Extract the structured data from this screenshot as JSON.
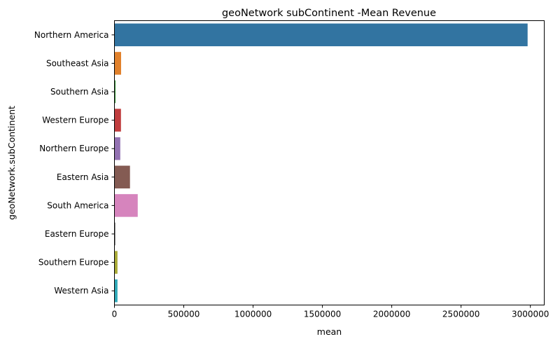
{
  "chart_data": {
    "type": "bar",
    "orientation": "horizontal",
    "title": "geoNetwork subContinent -Mean Revenue",
    "xlabel": "mean",
    "ylabel": "geoNetwork.subContinent",
    "xlim": [
      0,
      3100000
    ],
    "xticks": [
      0,
      500000,
      1000000,
      1500000,
      2000000,
      2500000,
      3000000
    ],
    "xtick_labels": [
      "0",
      "500000",
      "1000000",
      "1500000",
      "2000000",
      "2500000",
      "3000000"
    ],
    "grid": false,
    "categories": [
      "Northern America",
      "Southeast Asia",
      "Southern Asia",
      "Western Europe",
      "Northern Europe",
      "Eastern Asia",
      "South America",
      "Eastern Europe",
      "Southern Europe",
      "Western Asia"
    ],
    "values": [
      2980000,
      48000,
      8000,
      47000,
      42000,
      112000,
      168000,
      7000,
      22000,
      22000
    ],
    "colors": [
      "#3274a1",
      "#e1812c",
      "#3a923a",
      "#c03d3e",
      "#9372b2",
      "#845b53",
      "#d684bd",
      "#7f7f7f",
      "#a9aa35",
      "#2ea9b8"
    ]
  }
}
